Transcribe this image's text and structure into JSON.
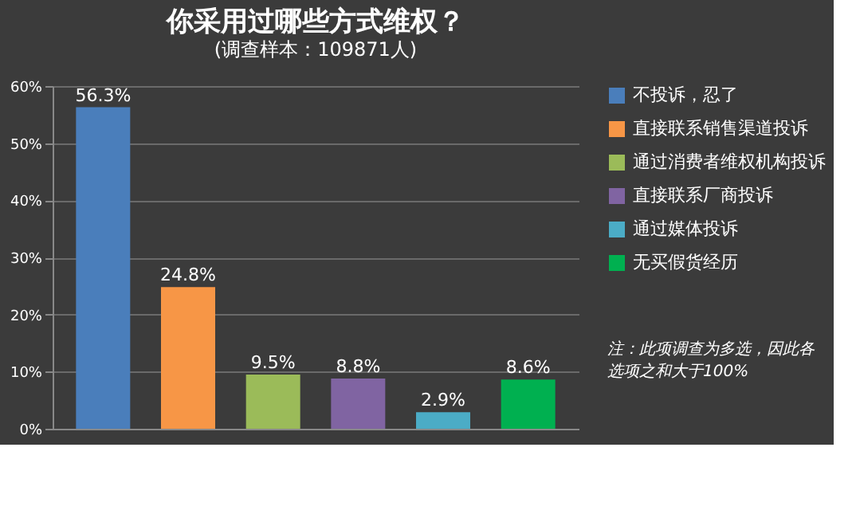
{
  "chart_data": {
    "type": "bar",
    "title": "你采用过哪些方式维权？",
    "subtitle": "(调查样本：109871人)",
    "categories": [
      null,
      null,
      null,
      null,
      null,
      null
    ],
    "series": [
      {
        "name": "不投诉，忍了",
        "color": "#4a7ebb",
        "values": [
          56.3,
          null,
          null,
          null,
          null,
          null
        ],
        "value_labels": [
          "56.3%",
          null,
          null,
          null,
          null,
          null
        ]
      },
      {
        "name": "直接联系销售渠道投诉",
        "color": "#f79646",
        "values": [
          null,
          24.8,
          null,
          null,
          null,
          null
        ],
        "value_labels": [
          null,
          "24.8%",
          null,
          null,
          null,
          null
        ]
      },
      {
        "name": "通过消费者维权机构投诉",
        "color": "#9bbb59",
        "values": [
          null,
          null,
          9.5,
          null,
          null,
          null
        ],
        "value_labels": [
          null,
          null,
          "9.5%",
          null,
          null,
          null
        ]
      },
      {
        "name": "直接联系厂商投诉",
        "color": "#8064a2",
        "values": [
          null,
          null,
          null,
          8.8,
          null,
          null
        ],
        "value_labels": [
          null,
          null,
          null,
          "8.8%",
          null,
          null
        ]
      },
      {
        "name": "通过媒体投诉",
        "color": "#4bacc6",
        "values": [
          null,
          null,
          null,
          null,
          2.9,
          null
        ],
        "value_labels": [
          null,
          null,
          null,
          null,
          "2.9%",
          null
        ]
      },
      {
        "name": "无买假货经历",
        "color": "#00b050",
        "values": [
          null,
          null,
          null,
          null,
          null,
          8.6
        ],
        "value_labels": [
          null,
          null,
          null,
          null,
          null,
          "8.6%"
        ]
      }
    ],
    "ylim": [
      0,
      60
    ],
    "yticks": [
      {
        "value": 0,
        "label": "0%"
      },
      {
        "value": 10,
        "label": "10%"
      },
      {
        "value": 20,
        "label": "20%"
      },
      {
        "value": 30,
        "label": "30%"
      },
      {
        "value": 40,
        "label": "40%"
      },
      {
        "value": 50,
        "label": "50%"
      },
      {
        "value": 60,
        "label": "60%"
      }
    ],
    "grid": "y",
    "legend": "right",
    "tick_labels": "y",
    "annotations": [
      "注：此项调查为多选，因此各选项之和大于100%"
    ]
  }
}
